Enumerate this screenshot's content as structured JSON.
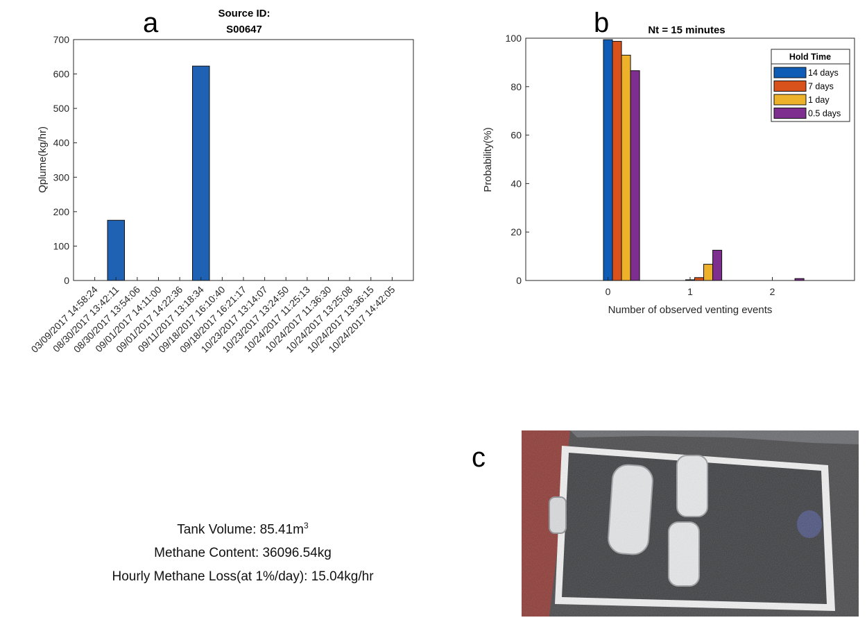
{
  "panel_labels": {
    "a": "a",
    "b": "b",
    "c": "c"
  },
  "chart_data": [
    {
      "id": "a",
      "type": "bar",
      "title_line1": "Source ID:",
      "title_line2": "S00647",
      "xlabel": "",
      "ylabel": "Qplume(kg/hr)",
      "ylim": [
        0,
        700
      ],
      "yticks": [
        0,
        100,
        200,
        300,
        400,
        500,
        600,
        700
      ],
      "categories": [
        "03/09/2017 14:58:24",
        "08/30/2017 13:42:11",
        "08/30/2017 13:54:06",
        "09/01/2017 14:11:00",
        "09/01/2017 14:22:36",
        "09/11/2017 13:18:34",
        "09/18/2017 16:10:40",
        "09/18/2017 16:21:17",
        "10/23/2017 13:14:07",
        "10/23/2017 13:24:50",
        "10/24/2017 11:25:13",
        "10/24/2017 11:36:30",
        "10/24/2017 13:25:08",
        "10/24/2017 13:36:15",
        "10/24/2017 14:42:05"
      ],
      "values": [
        0,
        175,
        0,
        0,
        0,
        623,
        0,
        0,
        0,
        0,
        0,
        0,
        0,
        0,
        0
      ],
      "bar_color": "#1f62b4",
      "grid": false
    },
    {
      "id": "b",
      "type": "bar",
      "title": "Nt = 15 minutes",
      "xlabel": "Number of observed venting events",
      "ylabel": "Probability(%)",
      "ylim": [
        0,
        100
      ],
      "xlim": [
        -1,
        3
      ],
      "yticks": [
        0,
        20,
        40,
        60,
        80,
        100
      ],
      "categories": [
        "0",
        "1",
        "2"
      ],
      "legend_title": "Hold Time",
      "legend_position": "top-right",
      "series": [
        {
          "name": "14 days",
          "color": "#0f5cb6",
          "values": [
            99.4,
            0.3,
            0.0
          ]
        },
        {
          "name": "7 days",
          "color": "#d9521b",
          "values": [
            98.7,
            1.2,
            0.0
          ]
        },
        {
          "name": "1 day",
          "color": "#edb12a",
          "values": [
            93.0,
            6.7,
            0.0
          ]
        },
        {
          "name": "0.5 days",
          "color": "#7e2e8e",
          "values": [
            86.6,
            12.5,
            0.8
          ]
        }
      ],
      "grid": false
    }
  ],
  "info": {
    "tank_volume": "Tank Volume: 85.41m",
    "tank_volume_sup": "3",
    "methane_content": "Methane Content: 36096.54kg",
    "hourly_loss": "Hourly Methane Loss(at 1%/day): 15.04kg/hr"
  }
}
